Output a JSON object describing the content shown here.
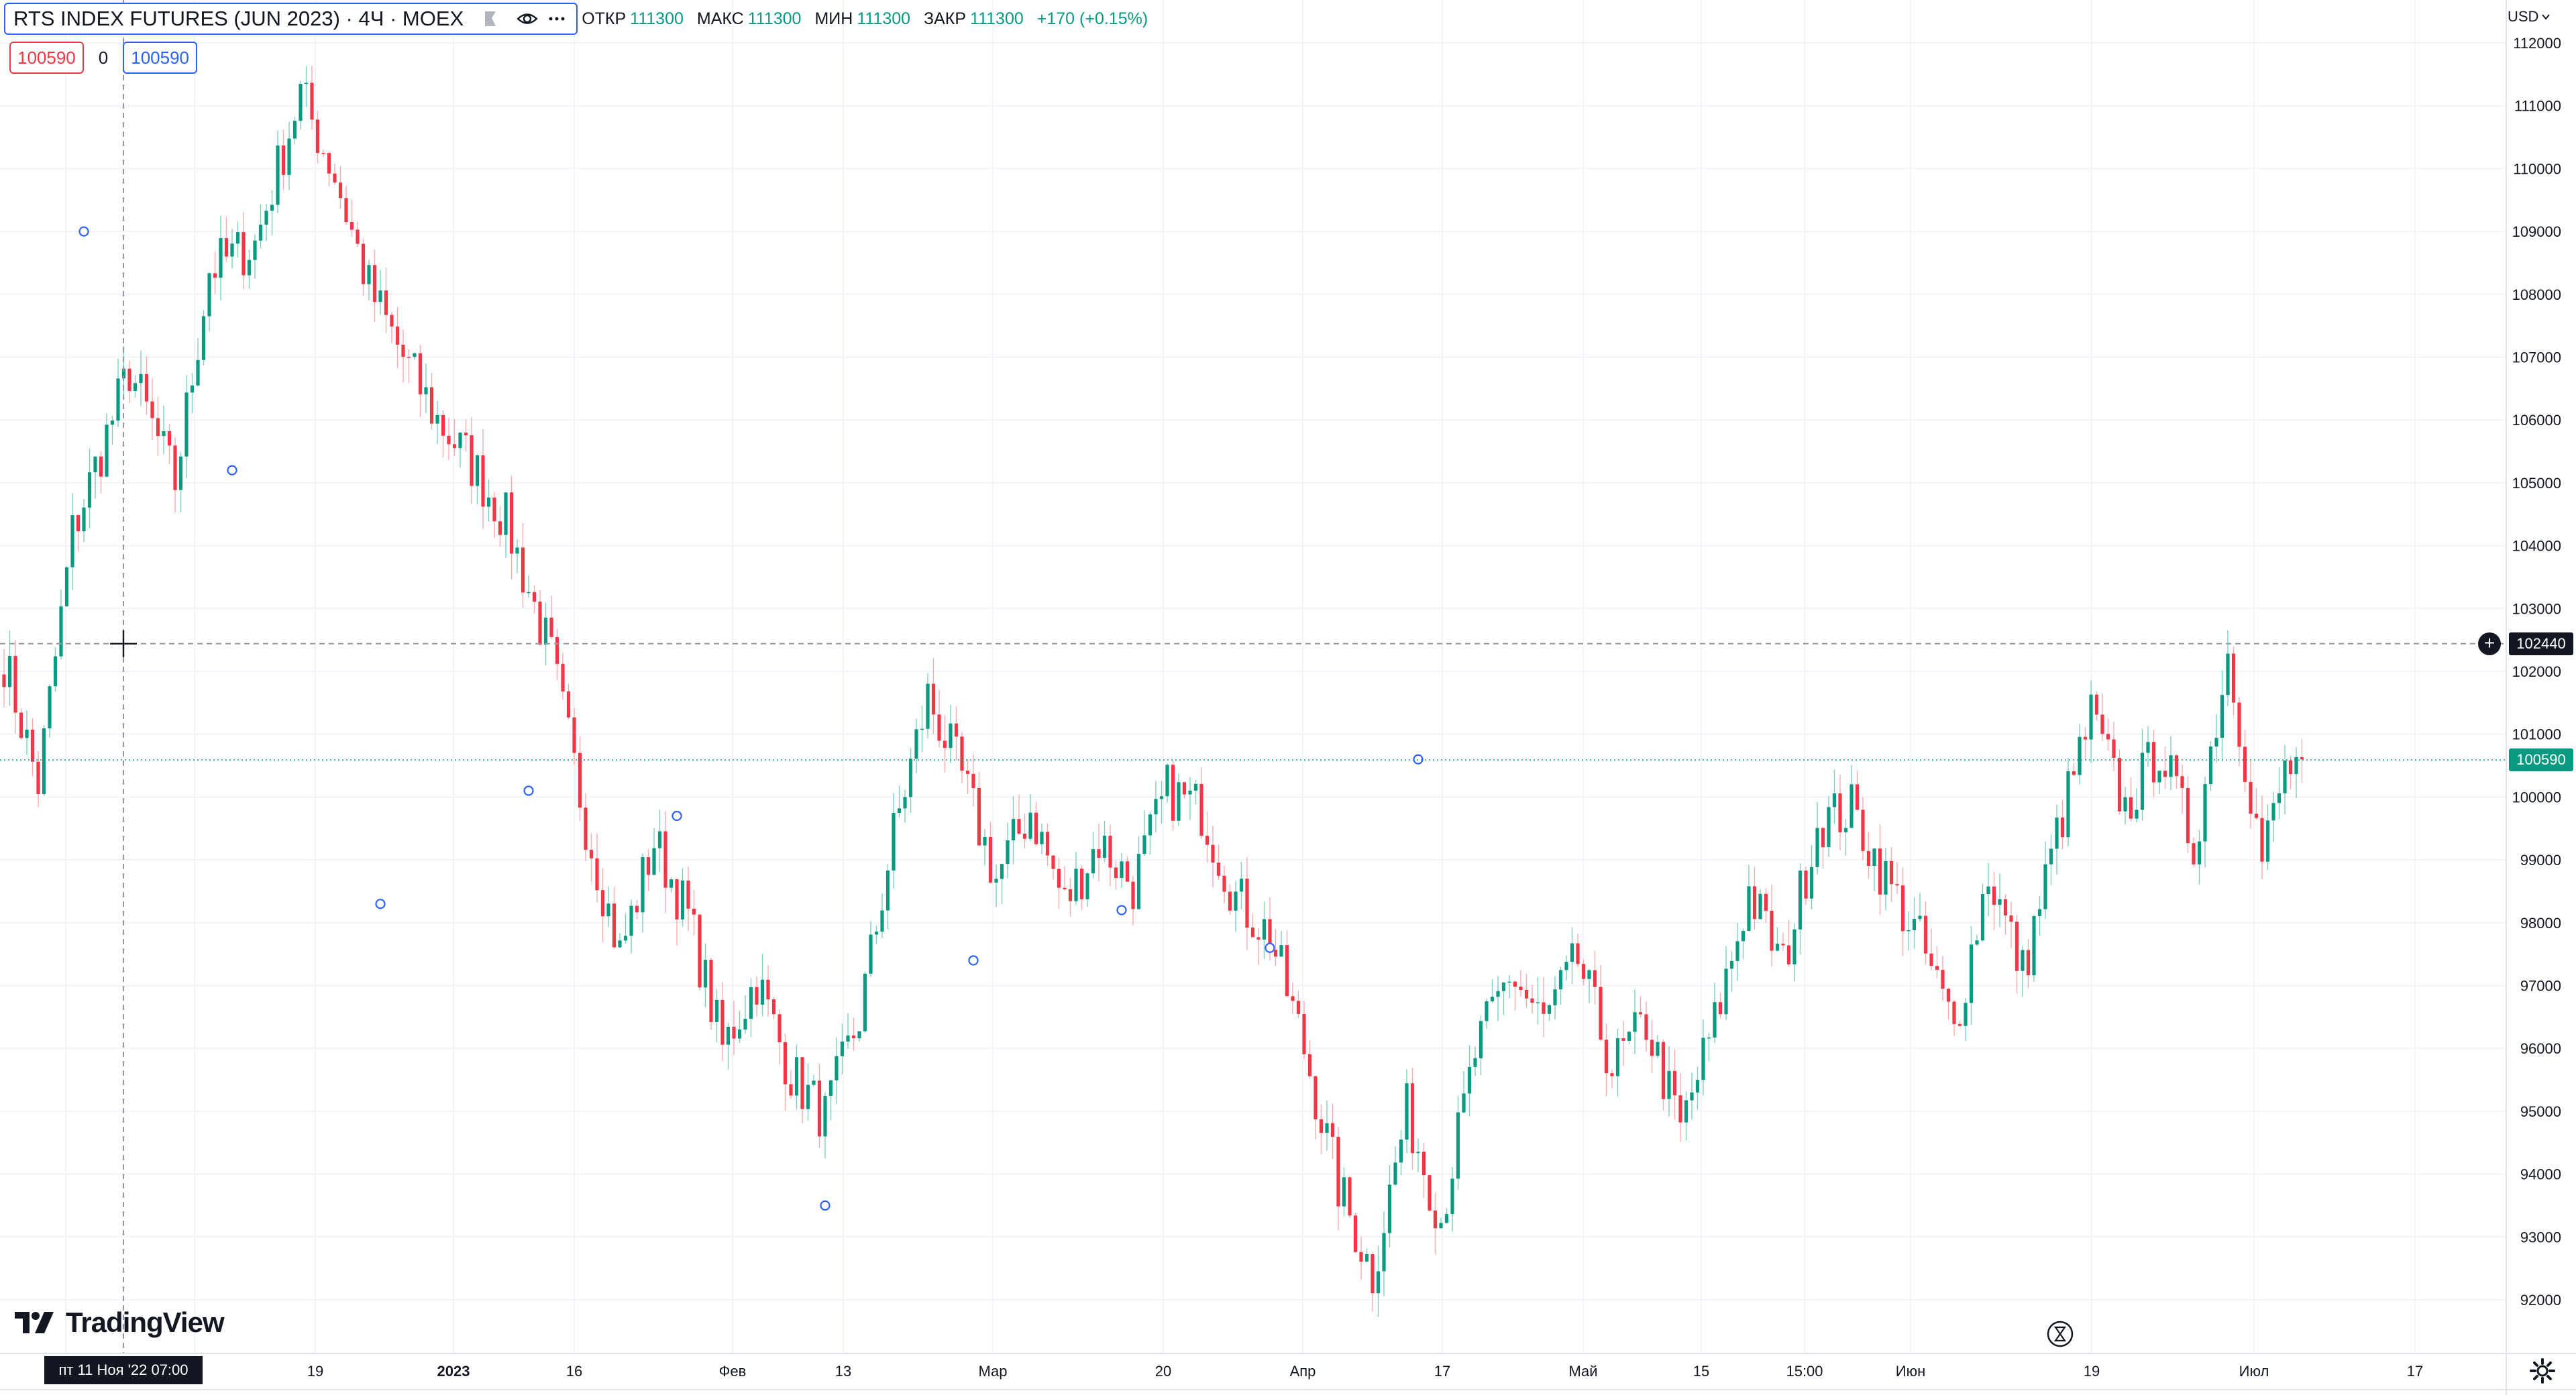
{
  "legend": {
    "title": "RTS INDEX FUTURES (JUN 2023) · 4Ч · MOEX",
    "ohlc": [
      {
        "label": "ОТКР",
        "value": "111300"
      },
      {
        "label": "МАКС",
        "value": "111300"
      },
      {
        "label": "МИН",
        "value": "111300"
      },
      {
        "label": "ЗАКР",
        "value": "111300"
      }
    ],
    "change": "+170 (+0.15%)",
    "sell_price": "100590",
    "spread": "0",
    "buy_price": "100590",
    "icons": [
      "flag-icon",
      "eye-icon",
      "more-icon"
    ]
  },
  "price_axis": {
    "currency": "USD",
    "crosshair_price": "102440",
    "last_price": "100590"
  },
  "time_axis": {
    "crosshair_time": "пт 11 Ноя '22   07:00"
  },
  "brand": "TradingView",
  "colors": {
    "up": "#089981",
    "down": "#f23645",
    "grid": "#f0f3fa",
    "crosshair": "#9598a1",
    "last_line": "#089981",
    "marker": "#2962ff"
  },
  "chart_data": {
    "type": "candlestick",
    "symbol": "RTS INDEX FUTURES (JUN 2023)",
    "interval": "4Ч",
    "exchange": "MOEX",
    "currency": "USD",
    "ylim": [
      92000,
      112000
    ],
    "y_ticks": [
      112000,
      111000,
      110000,
      109000,
      108000,
      107000,
      106000,
      105000,
      104000,
      103000,
      102000,
      101000,
      100000,
      99000,
      98000,
      97000,
      96000,
      95000,
      94000,
      93000,
      92000
    ],
    "x_tick_labels": [
      "19",
      "2023",
      "16",
      "Фев",
      "13",
      "Мар",
      "20",
      "Апр",
      "17",
      "Май",
      "15",
      "15:00",
      "Июн",
      "19",
      "Июл",
      "17"
    ],
    "grid": true,
    "last_price": 100590,
    "crosshair_price": 102440,
    "close_path": [
      [
        0,
        102200
      ],
      [
        6,
        100200
      ],
      [
        12,
        104200
      ],
      [
        22,
        106800
      ],
      [
        30,
        105000
      ],
      [
        36,
        108400
      ],
      [
        44,
        108800
      ],
      [
        52,
        111200
      ],
      [
        58,
        109900
      ],
      [
        64,
        108100
      ],
      [
        70,
        107000
      ],
      [
        76,
        106000
      ],
      [
        82,
        105300
      ],
      [
        88,
        104400
      ],
      [
        96,
        102200
      ],
      [
        102,
        99600
      ],
      [
        108,
        97500
      ],
      [
        114,
        99300
      ],
      [
        120,
        98100
      ],
      [
        126,
        96000
      ],
      [
        132,
        97100
      ],
      [
        138,
        95600
      ],
      [
        144,
        94900
      ],
      [
        150,
        96500
      ],
      [
        156,
        99400
      ],
      [
        162,
        101600
      ],
      [
        168,
        100300
      ],
      [
        174,
        98700
      ],
      [
        180,
        99800
      ],
      [
        186,
        98300
      ],
      [
        192,
        99300
      ],
      [
        198,
        98600
      ],
      [
        204,
        100100
      ],
      [
        210,
        99800
      ],
      [
        216,
        98400
      ],
      [
        222,
        97800
      ],
      [
        228,
        96000
      ],
      [
        234,
        93800
      ],
      [
        240,
        92400
      ],
      [
        246,
        95000
      ],
      [
        252,
        93300
      ],
      [
        258,
        95900
      ],
      [
        264,
        97200
      ],
      [
        270,
        96400
      ],
      [
        276,
        97400
      ],
      [
        282,
        95700
      ],
      [
        288,
        96400
      ],
      [
        294,
        94700
      ],
      [
        300,
        96400
      ],
      [
        306,
        98500
      ],
      [
        312,
        97300
      ],
      [
        318,
        99600
      ],
      [
        324,
        99800
      ],
      [
        330,
        98700
      ],
      [
        336,
        97700
      ],
      [
        342,
        96300
      ],
      [
        348,
        98800
      ],
      [
        354,
        97200
      ],
      [
        360,
        99400
      ],
      [
        366,
        101300
      ],
      [
        372,
        99800
      ],
      [
        378,
        100800
      ],
      [
        384,
        99200
      ],
      [
        390,
        102300
      ],
      [
        396,
        99000
      ],
      [
        400,
        100400
      ],
      [
        403,
        100600
      ]
    ],
    "markers": [
      {
        "bar": 14,
        "price": 109000
      },
      {
        "bar": 40,
        "price": 105200
      },
      {
        "bar": 66,
        "price": 98300
      },
      {
        "bar": 92,
        "price": 100100
      },
      {
        "bar": 118,
        "price": 99700
      },
      {
        "bar": 144,
        "price": 93500
      },
      {
        "bar": 170,
        "price": 97400
      },
      {
        "bar": 196,
        "price": 98200
      },
      {
        "bar": 222,
        "price": 97600
      },
      {
        "bar": 248,
        "price": 100600
      }
    ]
  }
}
